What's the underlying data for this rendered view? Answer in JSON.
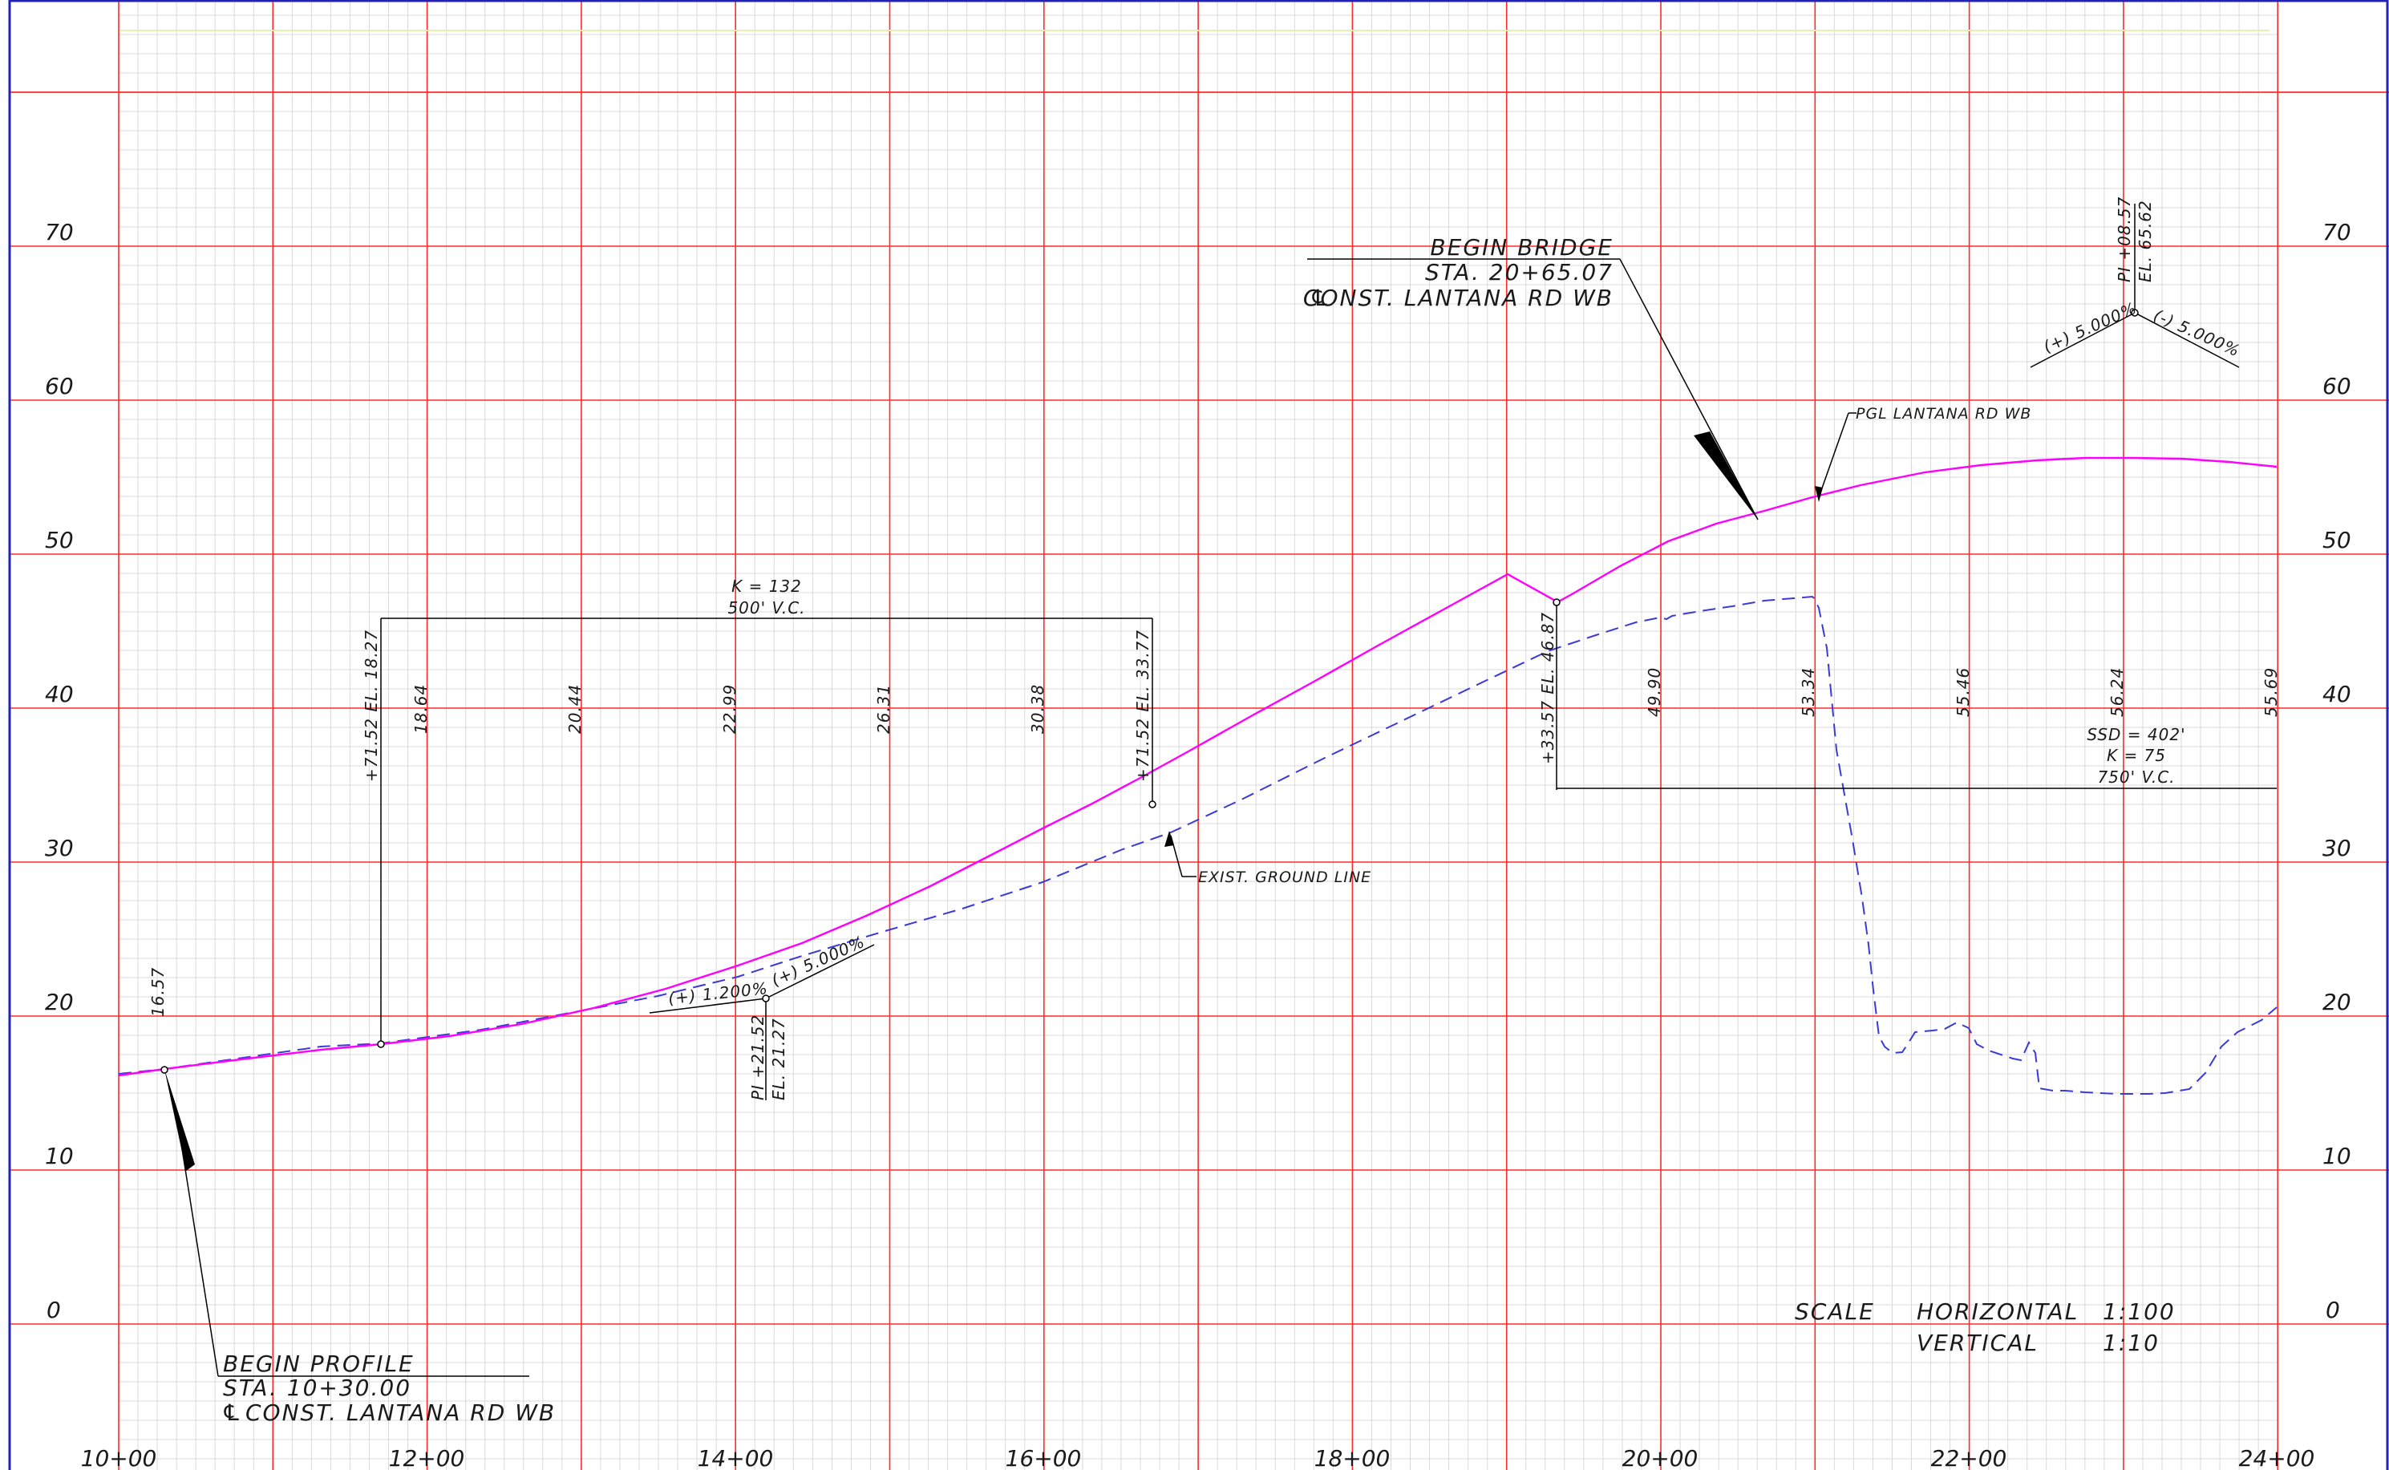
{
  "axes": {
    "x_ticks": [
      "10+00",
      "12+00",
      "14+00",
      "16+00",
      "18+00",
      "20+00",
      "22+00",
      "24+00"
    ],
    "y_ticks": [
      "0",
      "10",
      "20",
      "30",
      "40",
      "50",
      "60",
      "70"
    ]
  },
  "begin_profile": {
    "title": "BEGIN PROFILE",
    "station": "STA. 10+30.00",
    "centerline": "CONST. LANTANA RD WB",
    "cl_symbol": "℄"
  },
  "begin_bridge": {
    "title": "BEGIN BRIDGE",
    "station": "STA. 20+65.07",
    "centerline": "CONST. LANTANA RD WB",
    "cl_symbol": "℄"
  },
  "labels": {
    "pgl": "PGL LANTANA RD WB",
    "ground": "EXIST. GROUND LINE"
  },
  "vc1": {
    "k": "K = 132",
    "length": "500' V.C.",
    "bvc": "+71.52 EL. 18.27",
    "evc": "+71.52 EL. 33.77",
    "pi_sta": "PI +21.52",
    "pi_el": "EL. 21.27",
    "grade_in": "(+) 1.200%",
    "grade_out": "(+) 5.000%"
  },
  "vc2": {
    "ssd": "SSD = 402'",
    "k": "K = 75",
    "length": "750' V.C.",
    "bvc": "+33.57 EL. 46.87",
    "pi_sta": "PI +08.57",
    "pi_el": "EL. 65.62",
    "grade_in": "(+) 5.000%",
    "grade_out": "(-) 5.000%"
  },
  "elevations": {
    "e1657": "16.57",
    "e1864": "18.64",
    "e2044": "20.44",
    "e2299": "22.99",
    "e2631": "26.31",
    "e3038": "30.38",
    "e4990": "49.90",
    "e5334": "53.34",
    "e5546": "55.46",
    "e5624": "56.24",
    "e5569": "55.69"
  },
  "scale": {
    "title": "SCALE",
    "h_label": "HORIZONTAL",
    "h_value": "1:100",
    "v_label": "VERTICAL",
    "v_value": "1:10"
  },
  "colors": {
    "major_grid": "#ff2a2a",
    "minor_grid": "#d9d9d9",
    "profile": "#ff00ff",
    "ground": "#2a2acc",
    "border": "#2222bb"
  }
}
